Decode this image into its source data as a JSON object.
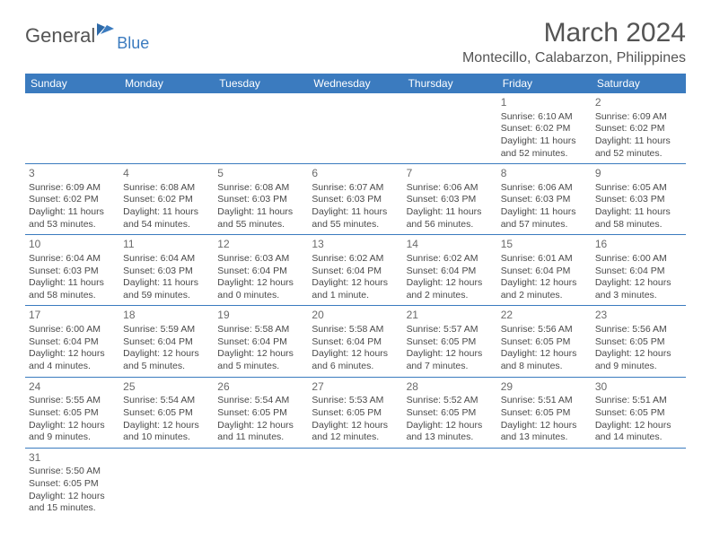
{
  "logo": {
    "text1": "General",
    "text2": "Blue"
  },
  "title": "March 2024",
  "location": "Montecillo, Calabarzon, Philippines",
  "colors": {
    "header_bg": "#3b7bbf",
    "text": "#545454",
    "cell_text": "#4a4a4a"
  },
  "day_headers": [
    "Sunday",
    "Monday",
    "Tuesday",
    "Wednesday",
    "Thursday",
    "Friday",
    "Saturday"
  ],
  "weeks": [
    [
      {
        "empty": true
      },
      {
        "empty": true
      },
      {
        "empty": true
      },
      {
        "empty": true
      },
      {
        "empty": true
      },
      {
        "day": "1",
        "sunrise": "Sunrise: 6:10 AM",
        "sunset": "Sunset: 6:02 PM",
        "daylight1": "Daylight: 11 hours",
        "daylight2": "and 52 minutes."
      },
      {
        "day": "2",
        "sunrise": "Sunrise: 6:09 AM",
        "sunset": "Sunset: 6:02 PM",
        "daylight1": "Daylight: 11 hours",
        "daylight2": "and 52 minutes."
      }
    ],
    [
      {
        "day": "3",
        "sunrise": "Sunrise: 6:09 AM",
        "sunset": "Sunset: 6:02 PM",
        "daylight1": "Daylight: 11 hours",
        "daylight2": "and 53 minutes."
      },
      {
        "day": "4",
        "sunrise": "Sunrise: 6:08 AM",
        "sunset": "Sunset: 6:02 PM",
        "daylight1": "Daylight: 11 hours",
        "daylight2": "and 54 minutes."
      },
      {
        "day": "5",
        "sunrise": "Sunrise: 6:08 AM",
        "sunset": "Sunset: 6:03 PM",
        "daylight1": "Daylight: 11 hours",
        "daylight2": "and 55 minutes."
      },
      {
        "day": "6",
        "sunrise": "Sunrise: 6:07 AM",
        "sunset": "Sunset: 6:03 PM",
        "daylight1": "Daylight: 11 hours",
        "daylight2": "and 55 minutes."
      },
      {
        "day": "7",
        "sunrise": "Sunrise: 6:06 AM",
        "sunset": "Sunset: 6:03 PM",
        "daylight1": "Daylight: 11 hours",
        "daylight2": "and 56 minutes."
      },
      {
        "day": "8",
        "sunrise": "Sunrise: 6:06 AM",
        "sunset": "Sunset: 6:03 PM",
        "daylight1": "Daylight: 11 hours",
        "daylight2": "and 57 minutes."
      },
      {
        "day": "9",
        "sunrise": "Sunrise: 6:05 AM",
        "sunset": "Sunset: 6:03 PM",
        "daylight1": "Daylight: 11 hours",
        "daylight2": "and 58 minutes."
      }
    ],
    [
      {
        "day": "10",
        "sunrise": "Sunrise: 6:04 AM",
        "sunset": "Sunset: 6:03 PM",
        "daylight1": "Daylight: 11 hours",
        "daylight2": "and 58 minutes."
      },
      {
        "day": "11",
        "sunrise": "Sunrise: 6:04 AM",
        "sunset": "Sunset: 6:03 PM",
        "daylight1": "Daylight: 11 hours",
        "daylight2": "and 59 minutes."
      },
      {
        "day": "12",
        "sunrise": "Sunrise: 6:03 AM",
        "sunset": "Sunset: 6:04 PM",
        "daylight1": "Daylight: 12 hours",
        "daylight2": "and 0 minutes."
      },
      {
        "day": "13",
        "sunrise": "Sunrise: 6:02 AM",
        "sunset": "Sunset: 6:04 PM",
        "daylight1": "Daylight: 12 hours",
        "daylight2": "and 1 minute."
      },
      {
        "day": "14",
        "sunrise": "Sunrise: 6:02 AM",
        "sunset": "Sunset: 6:04 PM",
        "daylight1": "Daylight: 12 hours",
        "daylight2": "and 2 minutes."
      },
      {
        "day": "15",
        "sunrise": "Sunrise: 6:01 AM",
        "sunset": "Sunset: 6:04 PM",
        "daylight1": "Daylight: 12 hours",
        "daylight2": "and 2 minutes."
      },
      {
        "day": "16",
        "sunrise": "Sunrise: 6:00 AM",
        "sunset": "Sunset: 6:04 PM",
        "daylight1": "Daylight: 12 hours",
        "daylight2": "and 3 minutes."
      }
    ],
    [
      {
        "day": "17",
        "sunrise": "Sunrise: 6:00 AM",
        "sunset": "Sunset: 6:04 PM",
        "daylight1": "Daylight: 12 hours",
        "daylight2": "and 4 minutes."
      },
      {
        "day": "18",
        "sunrise": "Sunrise: 5:59 AM",
        "sunset": "Sunset: 6:04 PM",
        "daylight1": "Daylight: 12 hours",
        "daylight2": "and 5 minutes."
      },
      {
        "day": "19",
        "sunrise": "Sunrise: 5:58 AM",
        "sunset": "Sunset: 6:04 PM",
        "daylight1": "Daylight: 12 hours",
        "daylight2": "and 5 minutes."
      },
      {
        "day": "20",
        "sunrise": "Sunrise: 5:58 AM",
        "sunset": "Sunset: 6:04 PM",
        "daylight1": "Daylight: 12 hours",
        "daylight2": "and 6 minutes."
      },
      {
        "day": "21",
        "sunrise": "Sunrise: 5:57 AM",
        "sunset": "Sunset: 6:05 PM",
        "daylight1": "Daylight: 12 hours",
        "daylight2": "and 7 minutes."
      },
      {
        "day": "22",
        "sunrise": "Sunrise: 5:56 AM",
        "sunset": "Sunset: 6:05 PM",
        "daylight1": "Daylight: 12 hours",
        "daylight2": "and 8 minutes."
      },
      {
        "day": "23",
        "sunrise": "Sunrise: 5:56 AM",
        "sunset": "Sunset: 6:05 PM",
        "daylight1": "Daylight: 12 hours",
        "daylight2": "and 9 minutes."
      }
    ],
    [
      {
        "day": "24",
        "sunrise": "Sunrise: 5:55 AM",
        "sunset": "Sunset: 6:05 PM",
        "daylight1": "Daylight: 12 hours",
        "daylight2": "and 9 minutes."
      },
      {
        "day": "25",
        "sunrise": "Sunrise: 5:54 AM",
        "sunset": "Sunset: 6:05 PM",
        "daylight1": "Daylight: 12 hours",
        "daylight2": "and 10 minutes."
      },
      {
        "day": "26",
        "sunrise": "Sunrise: 5:54 AM",
        "sunset": "Sunset: 6:05 PM",
        "daylight1": "Daylight: 12 hours",
        "daylight2": "and 11 minutes."
      },
      {
        "day": "27",
        "sunrise": "Sunrise: 5:53 AM",
        "sunset": "Sunset: 6:05 PM",
        "daylight1": "Daylight: 12 hours",
        "daylight2": "and 12 minutes."
      },
      {
        "day": "28",
        "sunrise": "Sunrise: 5:52 AM",
        "sunset": "Sunset: 6:05 PM",
        "daylight1": "Daylight: 12 hours",
        "daylight2": "and 13 minutes."
      },
      {
        "day": "29",
        "sunrise": "Sunrise: 5:51 AM",
        "sunset": "Sunset: 6:05 PM",
        "daylight1": "Daylight: 12 hours",
        "daylight2": "and 13 minutes."
      },
      {
        "day": "30",
        "sunrise": "Sunrise: 5:51 AM",
        "sunset": "Sunset: 6:05 PM",
        "daylight1": "Daylight: 12 hours",
        "daylight2": "and 14 minutes."
      }
    ],
    [
      {
        "day": "31",
        "sunrise": "Sunrise: 5:50 AM",
        "sunset": "Sunset: 6:05 PM",
        "daylight1": "Daylight: 12 hours",
        "daylight2": "and 15 minutes."
      },
      {
        "empty": true
      },
      {
        "empty": true
      },
      {
        "empty": true
      },
      {
        "empty": true
      },
      {
        "empty": true
      },
      {
        "empty": true
      }
    ]
  ]
}
